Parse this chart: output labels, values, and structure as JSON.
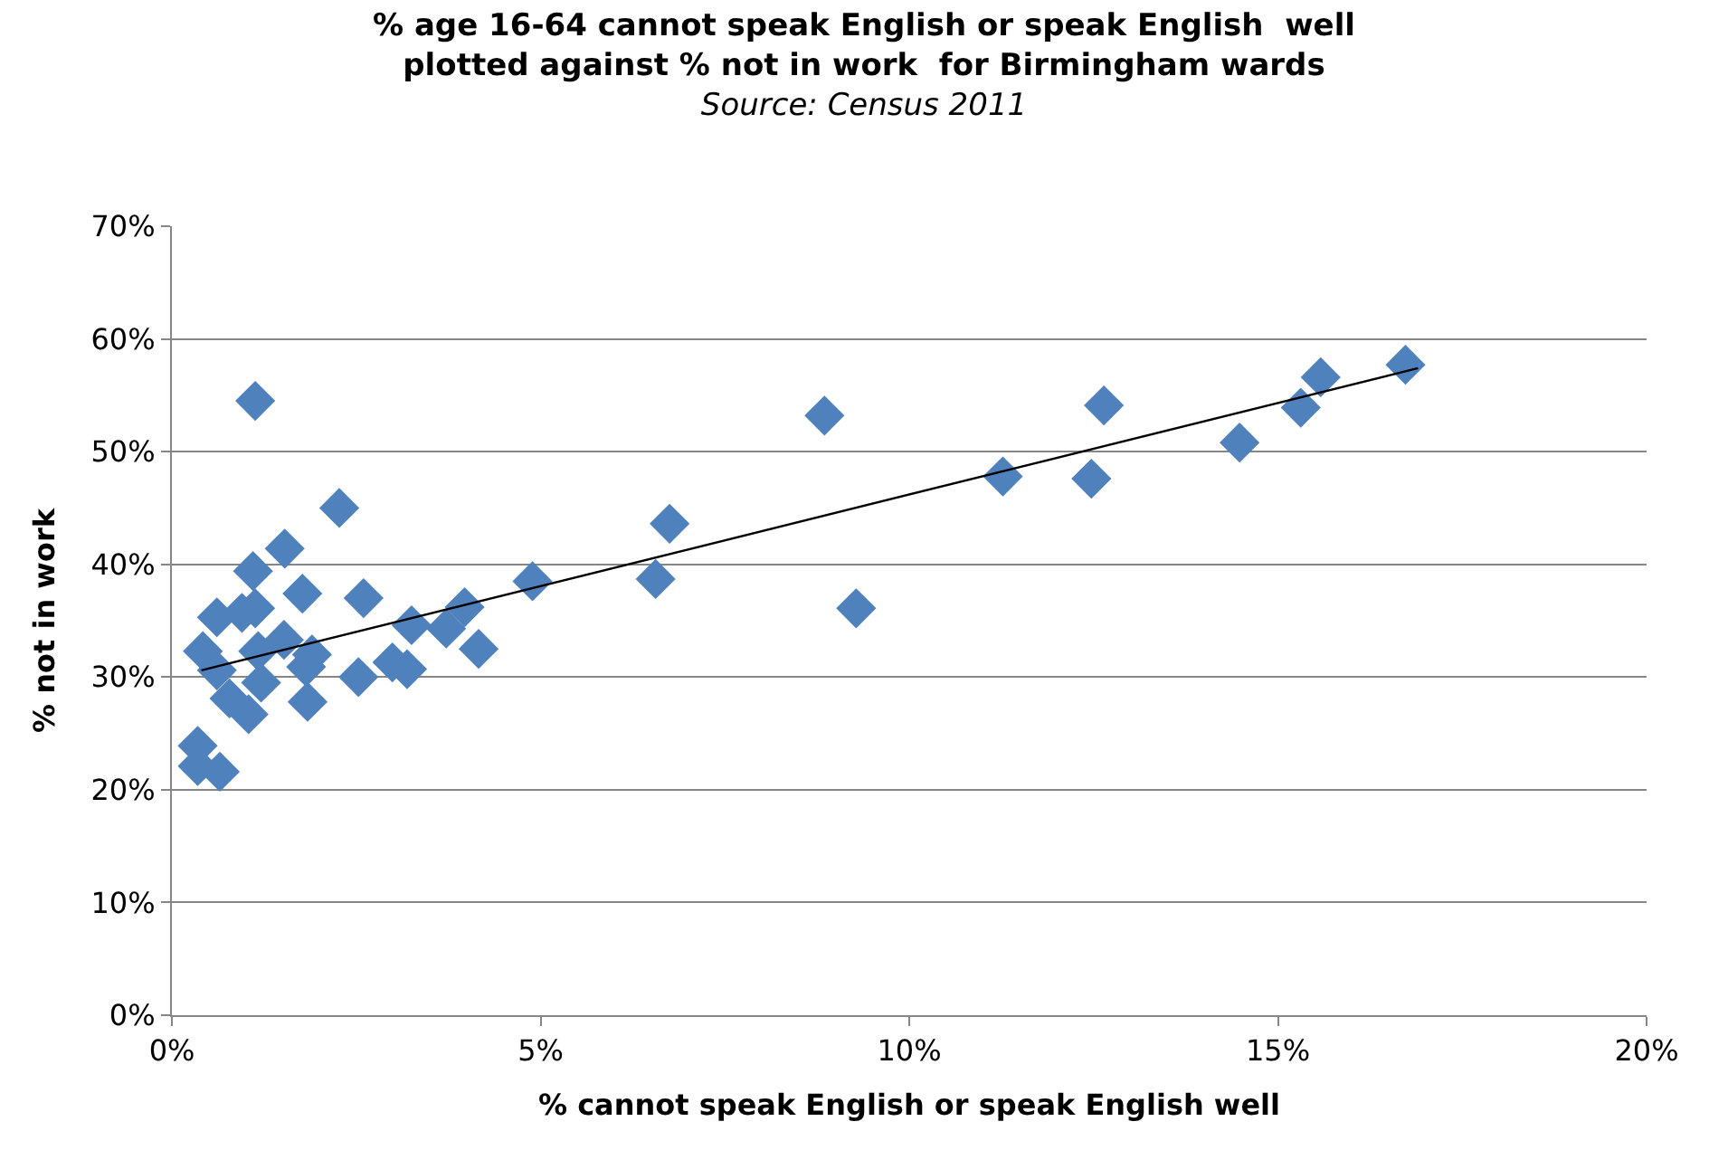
{
  "chart_data": {
    "type": "scatter",
    "title": "% age 16-64 cannot speak English or speak English  well\nplotted against % not in work  for Birmingham wards",
    "subtitle": "Source: Census 2011",
    "xlabel": "% cannot speak English or speak English well",
    "ylabel": "% not in work",
    "xlim": [
      0,
      20
    ],
    "xticks": [
      {
        "value": 0,
        "label": "0%"
      },
      {
        "value": 5,
        "label": "5%"
      },
      {
        "value": 10,
        "label": "10%"
      },
      {
        "value": 15,
        "label": "15%"
      },
      {
        "value": 20,
        "label": "20%"
      }
    ],
    "ylim": [
      0,
      70
    ],
    "yticks": [
      {
        "value": 0,
        "label": "0%"
      },
      {
        "value": 10,
        "label": "10%"
      },
      {
        "value": 20,
        "label": "20%"
      },
      {
        "value": 30,
        "label": "30%"
      },
      {
        "value": 40,
        "label": "40%"
      },
      {
        "value": 50,
        "label": "50%"
      },
      {
        "value": 60,
        "label": "60%"
      },
      {
        "value": 70,
        "label": "70%"
      }
    ],
    "grid": "y",
    "series": [
      {
        "marker": "diamond",
        "color": "#4f81bd",
        "x": [
          1.13,
          2.27,
          1.53,
          1.1,
          1.77,
          2.6,
          0.61,
          0.95,
          1.13,
          0.42,
          1.52,
          1.17,
          1.9,
          1.82,
          0.61,
          1.21,
          0.78,
          1.04,
          1.84,
          2.53,
          2.99,
          3.19,
          3.25,
          3.72,
          3.97,
          4.16,
          4.89,
          0.35,
          0.35,
          0.65,
          6.75,
          6.56,
          8.85,
          9.28,
          11.27,
          12.47,
          12.64,
          14.48,
          15.31,
          15.58,
          16.73
        ],
        "values": [
          54.5,
          45.0,
          41.4,
          39.4,
          37.4,
          37.0,
          35.3,
          35.7,
          36.1,
          32.3,
          33.3,
          32.3,
          32.0,
          30.9,
          30.6,
          29.5,
          28.1,
          26.7,
          27.8,
          30.0,
          31.3,
          30.7,
          34.6,
          34.3,
          36.2,
          32.5,
          38.5,
          23.9,
          22.1,
          21.6,
          43.6,
          38.7,
          53.2,
          36.1,
          47.8,
          47.6,
          54.1,
          50.8,
          53.9,
          56.6,
          57.7
        ]
      },
      {
        "type": "line",
        "marker": "none",
        "color": "#000000",
        "x": [
          0.4,
          16.9
        ],
        "values": [
          30.6,
          57.4
        ]
      }
    ]
  }
}
